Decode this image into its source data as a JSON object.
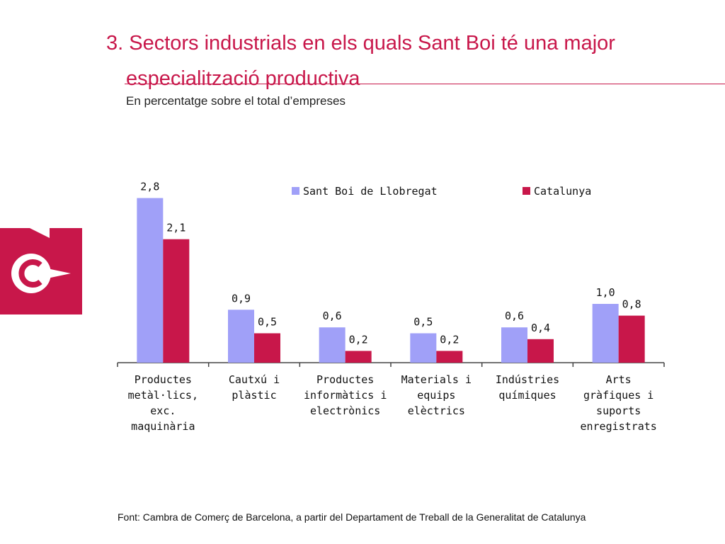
{
  "header": {
    "title_line1": "3. Sectors  industrials en els quals Sant Boi té una major",
    "title_line2": "especialització productiva",
    "subtitle": "En percentatge sobre el total d’empreses"
  },
  "footer": {
    "source": "Font: Cambra de Comerç de Barcelona, a partir del Departament de Treball de la Generalitat de Catalunya"
  },
  "colors": {
    "brand": "#c8174a",
    "series1": "#a0a0f8",
    "series2": "#c8174a"
  },
  "chart_data": {
    "type": "bar",
    "title": "",
    "categories": [
      [
        "Productes",
        "metàl·lics,",
        "exc.",
        "maquinària"
      ],
      [
        "Cautxú i",
        "plàstic"
      ],
      [
        "Productes",
        "informàtics i",
        "electrònics"
      ],
      [
        "Materials i",
        "equips",
        "elèctrics"
      ],
      [
        "Indústries",
        "químiques"
      ],
      [
        "Arts",
        "gràfiques i",
        "suports",
        "enregistrats"
      ]
    ],
    "series": [
      {
        "name": "Sant Boi de Llobregat",
        "values": [
          2.8,
          0.9,
          0.6,
          0.5,
          0.6,
          1.0
        ],
        "labels": [
          "2,8",
          "0,9",
          "0,6",
          "0,5",
          "0,6",
          "1,0"
        ]
      },
      {
        "name": "Catalunya",
        "values": [
          2.1,
          0.5,
          0.2,
          0.2,
          0.4,
          0.8
        ],
        "labels": [
          "2,1",
          "0,5",
          "0,2",
          "0,2",
          "0,4",
          "0,8"
        ]
      }
    ],
    "ylim": [
      0,
      3.0
    ],
    "legend": "top",
    "grid": false
  }
}
